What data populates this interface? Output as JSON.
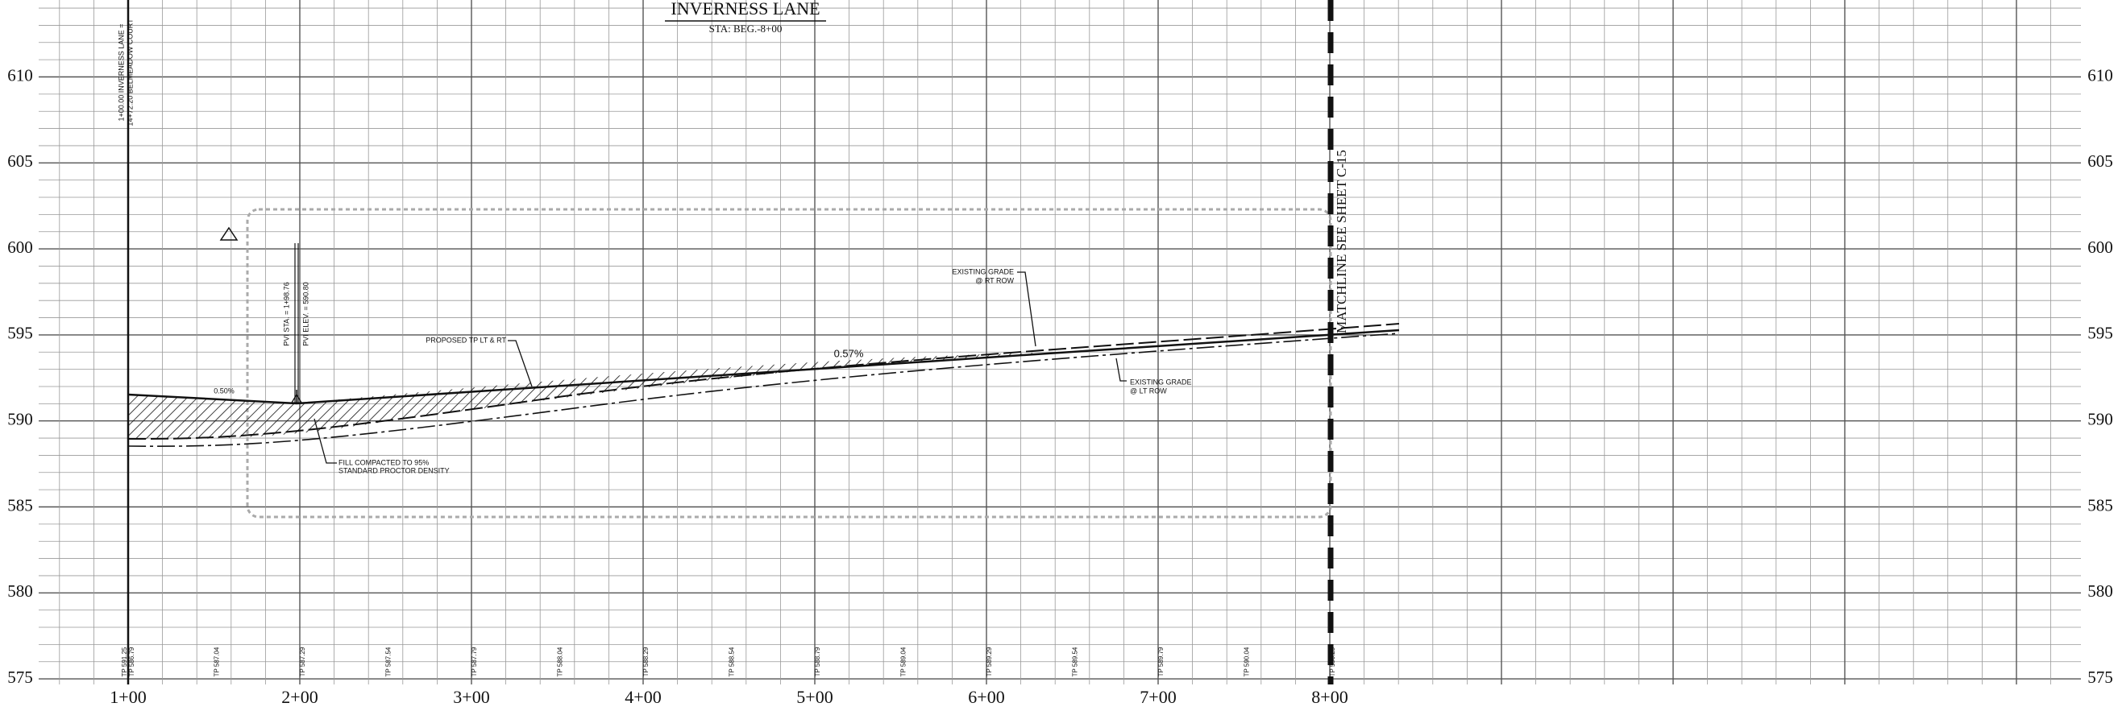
{
  "header": {
    "title": "INVERNESS LANE",
    "subtitle": "STA: BEG.-8+00"
  },
  "elevation_labels": [
    610,
    605,
    600,
    595,
    590,
    585,
    580,
    575
  ],
  "station_labels": [
    "1+00",
    "2+00",
    "3+00",
    "4+00",
    "5+00",
    "6+00",
    "7+00",
    "8+00"
  ],
  "annotations": {
    "start_note_1": "1+00.00 INVERNESS LANE =",
    "start_note_2": "14+72.20 BELMEADOW COURT",
    "pvi_sta": "PVI STA. = 1+98.76",
    "pvi_elev": "PVI ELEV. = 590.80",
    "proposed": "PROPOSED TP LT & RT",
    "slope_1": "0.50%",
    "slope_2": "0.57%",
    "fill_1": "FILL COMPACTED TO 95%",
    "fill_2": "STANDARD PROCTOR DENSITY",
    "existing_rt_1": "EXISTING GRADE",
    "existing_rt_2": "@ RT ROW",
    "existing_lt_1": "EXISTING GRADE",
    "existing_lt_2": "@ LT ROW",
    "matchline": "MATCHLINE SEE SHEET C-15"
  },
  "tp_labels": [
    "TP 591.25",
    "TP 586.79",
    "TP 587.04",
    "TP 587.29",
    "TP 587.54",
    "TP 587.79",
    "TP 588.04",
    "TP 588.29",
    "TP 588.54",
    "TP 588.79",
    "TP 589.04",
    "TP 589.29",
    "TP 589.54",
    "TP 589.79",
    "TP 590.04",
    "TP 590.29"
  ]
}
